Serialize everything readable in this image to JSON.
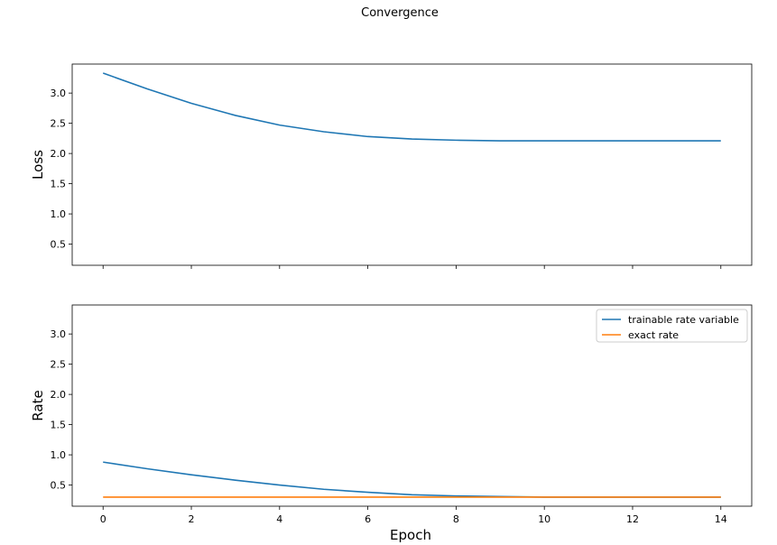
{
  "chart_data": {
    "title": "Convergence",
    "x": [
      0,
      1,
      2,
      3,
      4,
      5,
      6,
      7,
      8,
      9,
      10,
      11,
      12,
      13,
      14
    ],
    "xlabel": "Epoch",
    "xlim": [
      -0.7,
      14.7
    ],
    "xticks": [
      0,
      2,
      4,
      6,
      8,
      10,
      12,
      14
    ],
    "panels": [
      {
        "type": "line",
        "ylabel": "Loss",
        "ylim": [
          0.15,
          3.48
        ],
        "yticks": [
          0.5,
          1.0,
          1.5,
          2.0,
          2.5,
          3.0
        ],
        "ytick_labels": [
          "0.5",
          "1.0",
          "1.5",
          "2.0",
          "2.5",
          "3.0"
        ],
        "xtick_labels_shown": false,
        "grid": false,
        "legend": null,
        "series": [
          {
            "name": "",
            "color": "#1f77b4",
            "values": [
              3.33,
              3.07,
              2.83,
              2.63,
              2.47,
              2.36,
              2.28,
              2.24,
              2.22,
              2.21,
              2.21,
              2.21,
              2.21,
              2.21,
              2.21
            ]
          }
        ]
      },
      {
        "type": "line",
        "ylabel": "Rate",
        "ylim": [
          0.15,
          3.48
        ],
        "yticks": [
          0.5,
          1.0,
          1.5,
          2.0,
          2.5,
          3.0
        ],
        "ytick_labels": [
          "0.5",
          "1.0",
          "1.5",
          "2.0",
          "2.5",
          "3.0"
        ],
        "xtick_labels_shown": true,
        "xtick_labels": [
          "0",
          "2",
          "4",
          "6",
          "8",
          "10",
          "12",
          "14"
        ],
        "grid": false,
        "legend": "top-right",
        "series": [
          {
            "name": "trainable rate variable",
            "color": "#1f77b4",
            "values": [
              0.88,
              0.77,
              0.67,
              0.58,
              0.5,
              0.43,
              0.38,
              0.34,
              0.32,
              0.31,
              0.3,
              0.3,
              0.3,
              0.3,
              0.3
            ]
          },
          {
            "name": "exact rate",
            "color": "#ff7f0e",
            "values": [
              0.3,
              0.3,
              0.3,
              0.3,
              0.3,
              0.3,
              0.3,
              0.3,
              0.3,
              0.3,
              0.3,
              0.3,
              0.3,
              0.3,
              0.3
            ]
          }
        ]
      }
    ]
  }
}
